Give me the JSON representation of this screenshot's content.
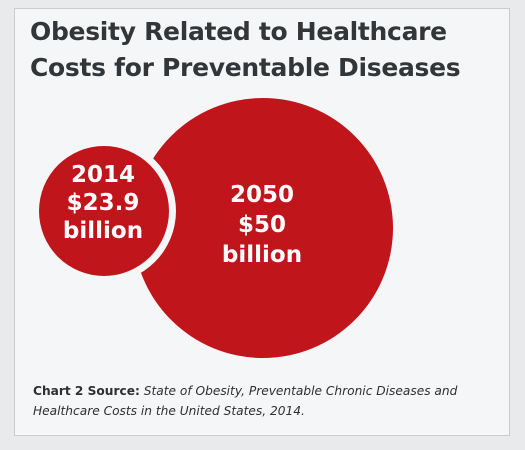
{
  "title_lines": [
    "Obesity Related to Healthcare",
    "Costs for Preventable Diseases"
  ],
  "colors": {
    "bubble": "#c0151a",
    "bubble_text": "#ffffff",
    "title": "#333638"
  },
  "chart_data": {
    "type": "bubble",
    "title": "Obesity Related to Healthcare Costs for Preventable Diseases",
    "unit": "billion",
    "points": [
      {
        "year": "2014",
        "value": 23.9,
        "value_label": "$23.9",
        "unit_label": "billion"
      },
      {
        "year": "2050",
        "value": 50,
        "value_label": "$50",
        "unit_label": "billion"
      }
    ]
  },
  "source": {
    "prefix": "Chart 2 Source:",
    "text": "State of Obesity, Preventable Chronic Diseases and Healthcare Costs in the United States, 2014."
  }
}
